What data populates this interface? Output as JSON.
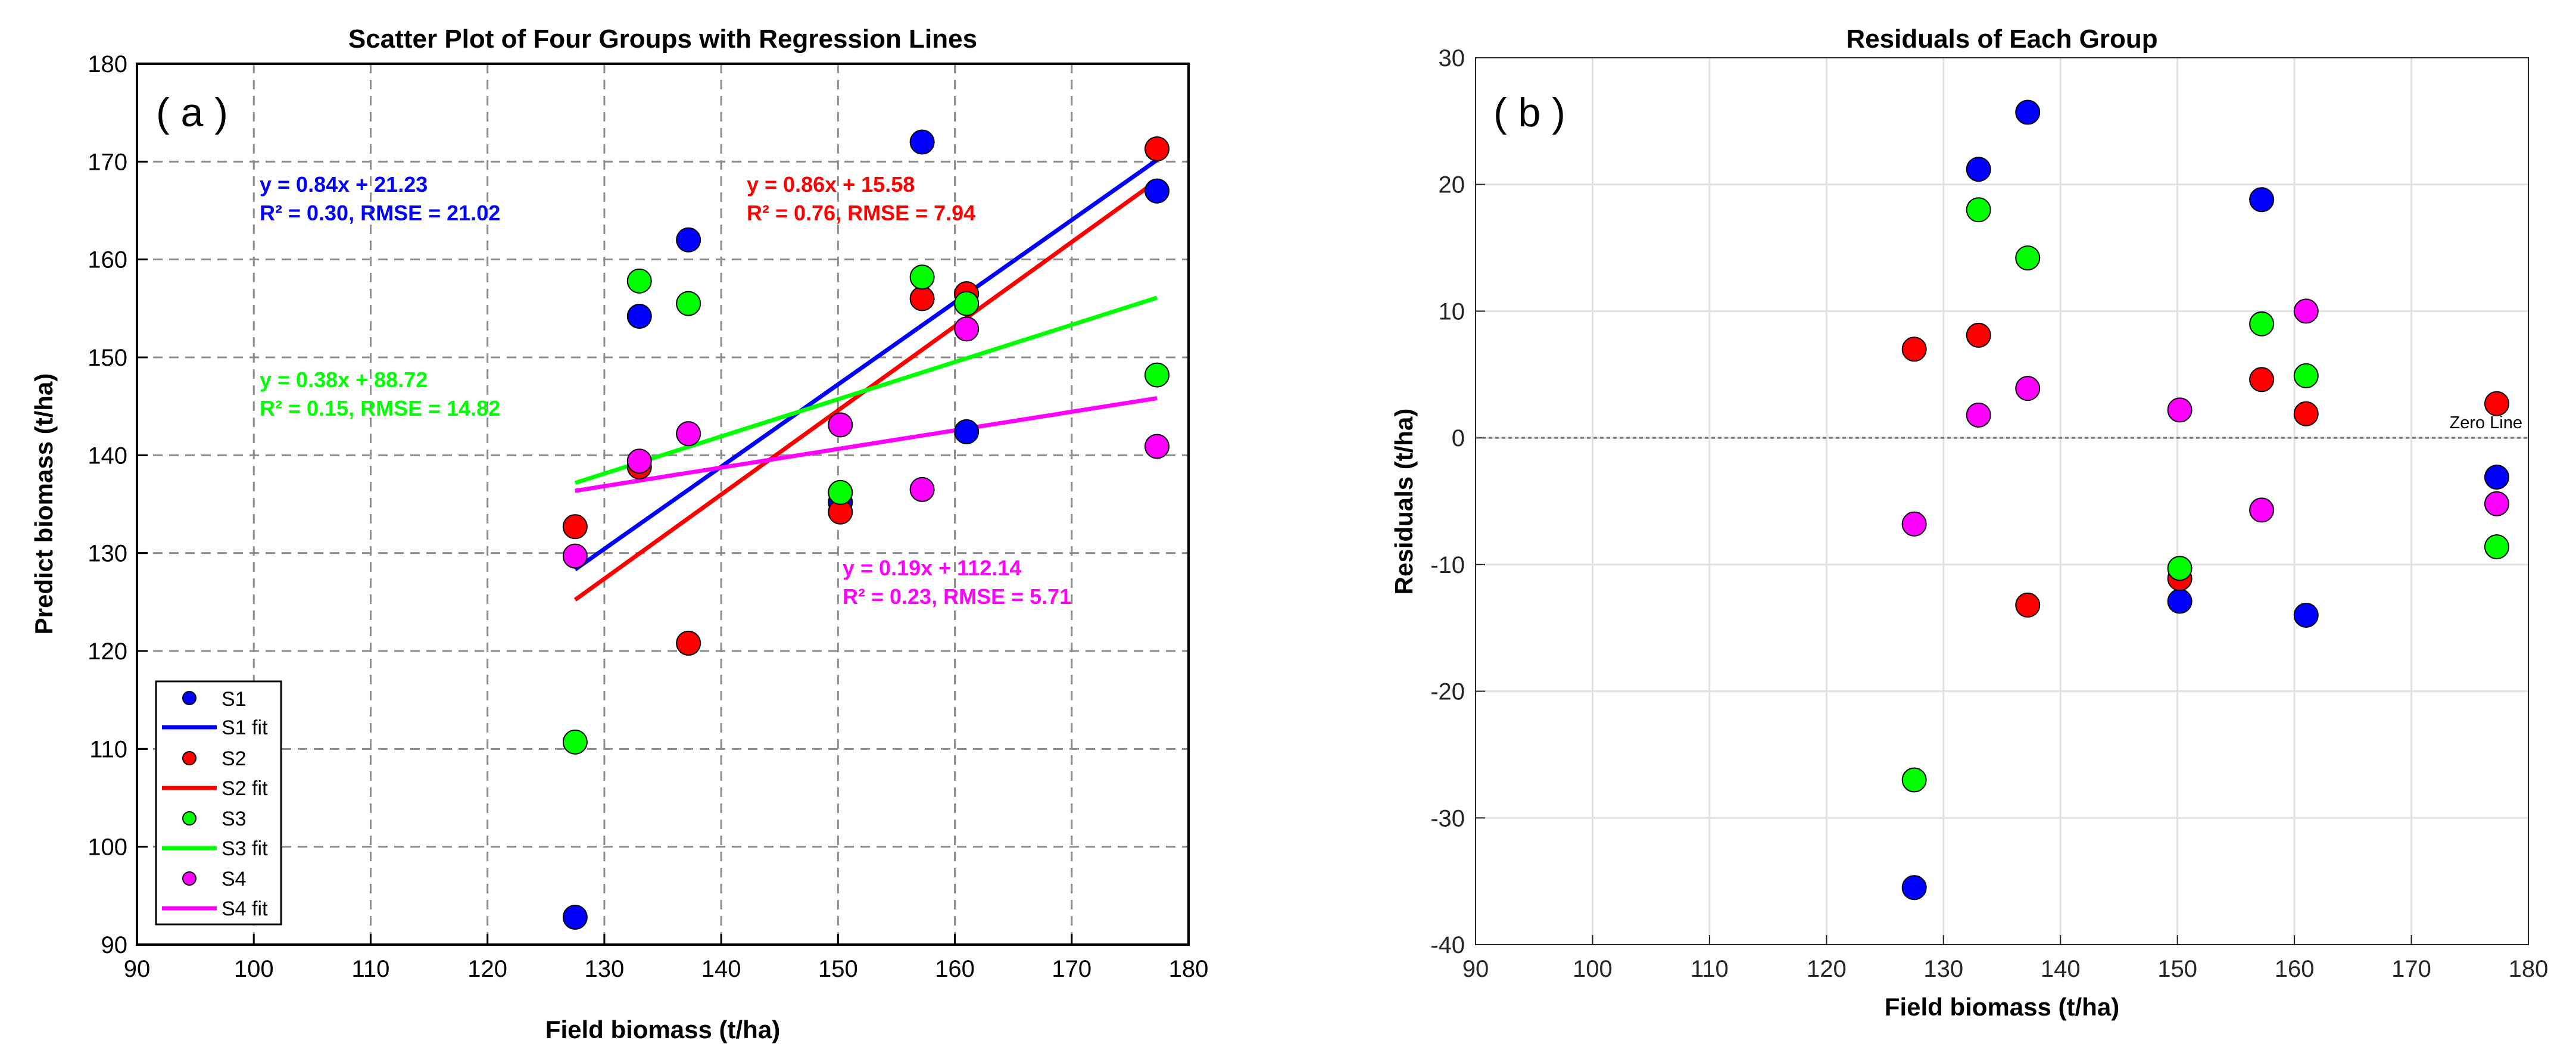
{
  "chart_data": [
    {
      "panel_label": "( a )",
      "type": "scatter",
      "title": "Scatter Plot of Four Groups with Regression Lines",
      "xlabel": "Field biomass (t/ha)",
      "ylabel": "Predict biomass (t/ha)",
      "xlim": [
        90,
        180
      ],
      "ylim": [
        90,
        180
      ],
      "xticks": [
        "90",
        "100",
        "110",
        "120",
        "130",
        "140",
        "150",
        "160",
        "170",
        "180"
      ],
      "yticks": [
        "90",
        "100",
        "110",
        "120",
        "130",
        "140",
        "150",
        "160",
        "170",
        "180"
      ],
      "grid": "dashed",
      "legend_position": "bottom-left",
      "x": [
        127.5,
        133,
        137.2,
        150.2,
        157.2,
        161,
        177.3
      ],
      "series": [
        {
          "name": "S1",
          "fit_name": "S1 fit",
          "color": "#0000ff",
          "values": [
            92.8,
            154.2,
            162,
            135.2,
            172,
            142.4,
            167
          ],
          "fit": {
            "slope": 0.84,
            "intercept": 21.23
          },
          "equation": "y = 0.84x + 21.23",
          "stats": "R² = 0.30, RMSE = 21.02"
        },
        {
          "name": "S2",
          "fit_name": "S2 fit",
          "color": "#ff0000",
          "values": [
            132.7,
            138.8,
            120.8,
            134.2,
            156,
            156.5,
            171.3
          ],
          "fit": {
            "slope": 0.86,
            "intercept": 15.58
          },
          "equation": "y = 0.86x + 15.58",
          "stats": "R² = 0.76, RMSE = 7.94"
        },
        {
          "name": "S3",
          "fit_name": "S3 fit",
          "color": "#00ff00",
          "values": [
            110.7,
            157.8,
            155.5,
            136.2,
            158.2,
            155.5,
            148.2
          ],
          "fit": {
            "slope": 0.38,
            "intercept": 88.72
          },
          "equation": "y = 0.38x + 88.72",
          "stats": "R² = 0.15, RMSE = 14.82"
        },
        {
          "name": "S4",
          "fit_name": "S4 fit",
          "color": "#ff00ff",
          "values": [
            129.7,
            139.4,
            142.2,
            143.1,
            136.5,
            152.9,
            140.9
          ],
          "fit": {
            "slope": 0.19,
            "intercept": 112.14
          },
          "equation": "y = 0.19x + 112.14",
          "stats": "R² = 0.23, RMSE = 5.71"
        }
      ]
    },
    {
      "panel_label": "( b )",
      "type": "scatter",
      "title": "Residuals of Each Group",
      "xlabel": "Field biomass (t/ha)",
      "ylabel": "Residuals (t/ha)",
      "xlim": [
        90,
        180
      ],
      "ylim": [
        -40,
        30
      ],
      "xticks": [
        "90",
        "100",
        "110",
        "120",
        "130",
        "140",
        "150",
        "160",
        "170",
        "180"
      ],
      "yticks": [
        "-40",
        "-30",
        "-20",
        "-10",
        "0",
        "10",
        "20",
        "30"
      ],
      "grid": "solid",
      "reference_line": {
        "y": 0,
        "label": "Zero Line"
      },
      "x": [
        127.5,
        133,
        137.2,
        150.2,
        157.2,
        161,
        177.3
      ],
      "series": [
        {
          "name": "S1",
          "color": "#0000ff",
          "values": [
            -35.5,
            21.2,
            25.7,
            -12.9,
            18.8,
            -14,
            -3.1
          ]
        },
        {
          "name": "S2",
          "color": "#ff0000",
          "values": [
            7,
            8.1,
            -13.2,
            -11.1,
            4.6,
            1.9,
            2.7
          ]
        },
        {
          "name": "S3",
          "color": "#00ff00",
          "values": [
            -27,
            18,
            14.2,
            -10.3,
            9,
            4.9,
            -8.6
          ]
        },
        {
          "name": "S4",
          "color": "#ff00ff",
          "values": [
            -6.8,
            1.8,
            3.9,
            2.2,
            -5.7,
            10,
            -5.2
          ]
        }
      ]
    }
  ]
}
